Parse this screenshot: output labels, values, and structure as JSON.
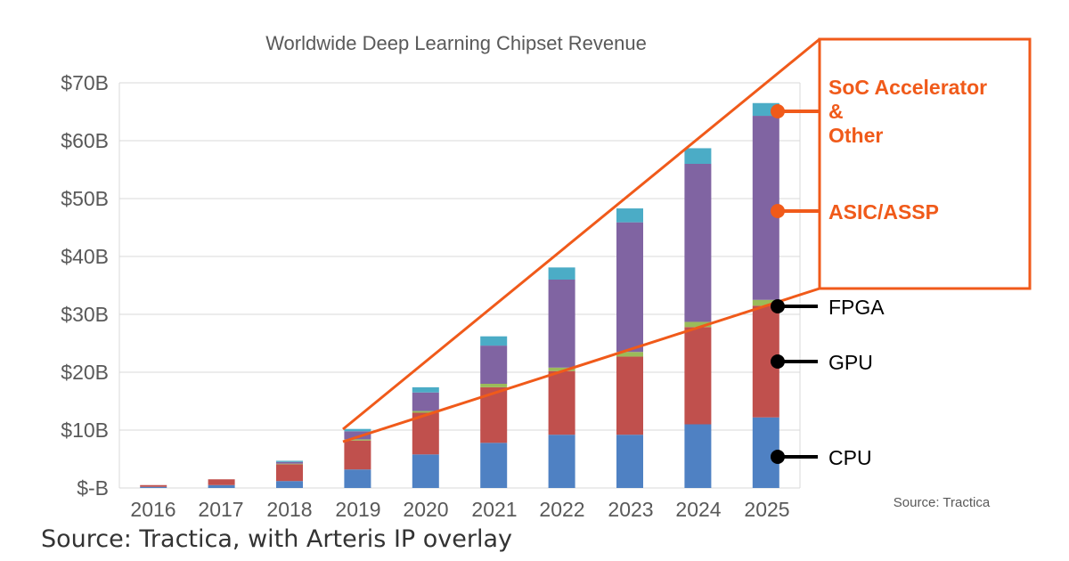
{
  "chart_data": {
    "type": "bar",
    "stacked": true,
    "title": "Worldwide Deep Learning Chipset Revenue",
    "categories": [
      "2016",
      "2017",
      "2018",
      "2019",
      "2020",
      "2021",
      "2022",
      "2023",
      "2024",
      "2025"
    ],
    "ylim": [
      0,
      70
    ],
    "yticks": [
      0,
      10,
      20,
      30,
      40,
      50,
      60,
      70
    ],
    "ytick_labels": [
      "$-B",
      "$10B",
      "$20B",
      "$30B",
      "$40B",
      "$50B",
      "$60B",
      "$70B"
    ],
    "grid": true,
    "series": [
      {
        "key": "CPU",
        "color": "#4f81c3",
        "values": [
          0.2,
          0.5,
          1.2,
          3.2,
          5.8,
          7.8,
          9.2,
          9.2,
          11.0,
          12.2
        ]
      },
      {
        "key": "GPU",
        "color": "#c0504d",
        "values": [
          0.3,
          1.0,
          2.9,
          5.0,
          7.2,
          9.6,
          11.0,
          13.5,
          16.8,
          19.3
        ]
      },
      {
        "key": "FPGA",
        "color": "#9bbb59",
        "values": [
          0.0,
          0.0,
          0.1,
          0.2,
          0.3,
          0.6,
          0.6,
          0.8,
          0.9,
          1.0
        ]
      },
      {
        "key": "ASIC/ASSP",
        "color": "#8064a2",
        "values": [
          0.0,
          0.0,
          0.3,
          1.4,
          3.2,
          6.6,
          15.2,
          22.4,
          27.3,
          31.8
        ]
      },
      {
        "key": "SoC Accelerator & Other",
        "color": "#4bacc6",
        "values": [
          0.0,
          0.0,
          0.2,
          0.4,
          0.9,
          1.6,
          2.1,
          2.4,
          2.7,
          2.2
        ]
      }
    ],
    "source": "Source: Tractica",
    "callouts": {
      "orange": [
        "SoC Accelerator",
        "&",
        "Other",
        "ASIC/ASSP"
      ],
      "black": [
        "FPGA",
        "GPU",
        "CPU"
      ]
    }
  },
  "caption": "Source: Tractica, with Arteris IP overlay",
  "colors": {
    "overlay": "#f05a1a",
    "axis_text": "#595959",
    "grid": "#d9d9d9"
  }
}
